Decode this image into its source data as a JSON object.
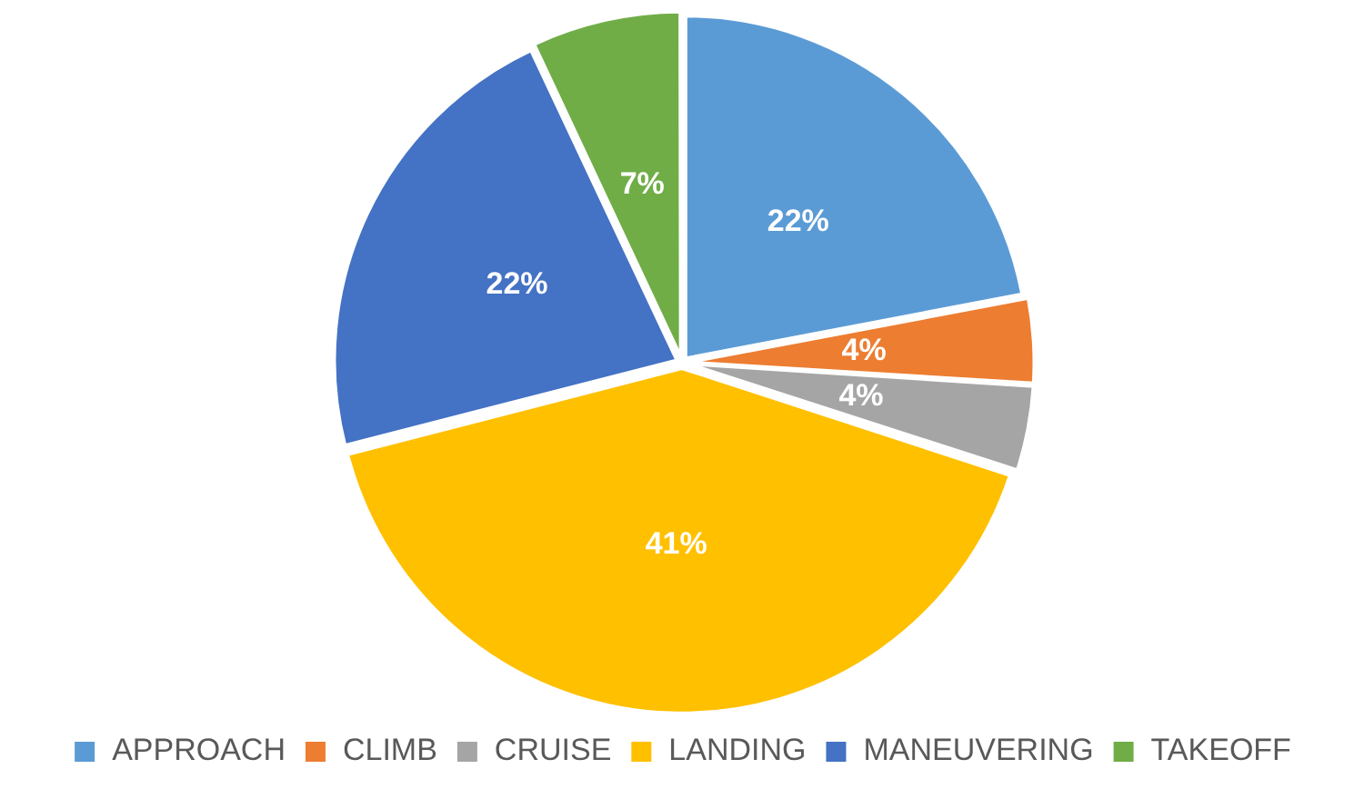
{
  "chart_data": {
    "type": "pie",
    "categories": [
      "APPROACH",
      "CLIMB",
      "CRUISE",
      "LANDING",
      "MANEUVERING",
      "TAKEOFF"
    ],
    "values": [
      22,
      4,
      4,
      41,
      22,
      7
    ],
    "colors": [
      "#5b9bd5",
      "#ed7d31",
      "#a5a5a5",
      "#ffc000",
      "#4472c4",
      "#70ad47"
    ],
    "value_labels": [
      "22%",
      "4%",
      "4%",
      "41%",
      "22%",
      "7%"
    ],
    "legend": "bottom"
  }
}
